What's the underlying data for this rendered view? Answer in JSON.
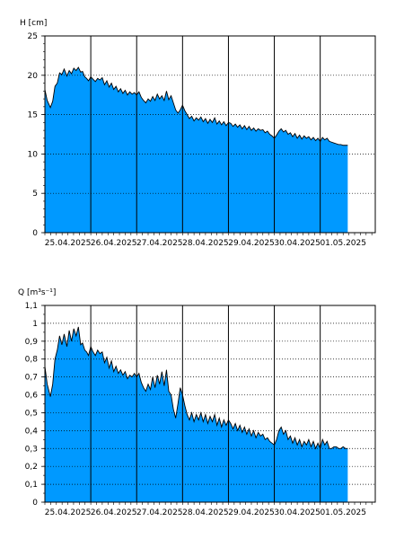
{
  "chart_data": [
    {
      "type": "area",
      "ylabel": "H [cm]",
      "ylim": [
        0,
        25
      ],
      "yticks": [
        0,
        5,
        10,
        15,
        20,
        25
      ],
      "ytick_labels": [
        "0",
        "5",
        "10",
        "15",
        "20",
        "25"
      ],
      "xlim": [
        0,
        7.2
      ],
      "x_day_lines": [
        1,
        2,
        3,
        4,
        5,
        6
      ],
      "x_tick_labels": [
        "25.04.2025",
        "26.04.2025",
        "27.04.2025",
        "28.04.2025",
        "29.04.2025",
        "30.04.2025",
        "01.05.2025"
      ],
      "grid": true,
      "fill_color": "#0099ff",
      "series": [
        {
          "x": [
            0,
            0.05,
            0.12,
            0.17,
            0.22,
            0.27,
            0.32,
            0.37,
            0.42,
            0.48,
            0.53,
            0.58,
            0.63,
            0.68,
            0.73,
            0.78,
            0.82,
            0.87,
            0.91,
            0.95,
            1.0,
            1.05,
            1.1,
            1.15,
            1.2,
            1.25,
            1.3,
            1.35,
            1.4,
            1.45,
            1.5,
            1.55,
            1.6,
            1.65,
            1.7,
            1.75,
            1.8,
            1.85,
            1.9,
            1.95,
            2.0,
            2.05,
            2.1,
            2.15,
            2.2,
            2.25,
            2.3,
            2.35,
            2.4,
            2.45,
            2.5,
            2.55,
            2.6,
            2.65,
            2.7,
            2.75,
            2.8,
            2.85,
            2.9,
            2.95,
            3.0,
            3.05,
            3.1,
            3.15,
            3.2,
            3.25,
            3.3,
            3.35,
            3.4,
            3.45,
            3.5,
            3.55,
            3.6,
            3.65,
            3.7,
            3.75,
            3.8,
            3.85,
            3.9,
            3.95,
            4.0,
            4.05,
            4.1,
            4.15,
            4.2,
            4.25,
            4.3,
            4.35,
            4.4,
            4.45,
            4.5,
            4.55,
            4.6,
            4.65,
            4.7,
            4.75,
            4.8,
            4.85,
            4.9,
            4.95,
            5.0,
            5.05,
            5.1,
            5.15,
            5.2,
            5.25,
            5.3,
            5.35,
            5.4,
            5.45,
            5.5,
            5.55,
            5.6,
            5.65,
            5.7,
            5.75,
            5.8,
            5.85,
            5.9,
            5.95,
            6.0,
            6.05,
            6.1,
            6.15,
            6.2,
            6.25,
            6.3,
            6.35,
            6.4,
            6.45,
            6.5,
            6.55,
            6.6
          ],
          "values": [
            18.2,
            16.8,
            15.9,
            16.7,
            18.6,
            19.0,
            20.3,
            20.1,
            20.8,
            19.9,
            20.6,
            20.2,
            20.9,
            20.6,
            21.0,
            20.4,
            20.5,
            19.8,
            19.6,
            19.3,
            19.8,
            19.5,
            19.2,
            19.6,
            19.4,
            19.7,
            18.8,
            19.3,
            18.5,
            19.0,
            18.2,
            18.6,
            17.9,
            18.3,
            17.7,
            18.1,
            17.5,
            17.9,
            17.6,
            17.8,
            17.5,
            17.9,
            17.2,
            16.8,
            16.5,
            17.0,
            16.7,
            17.3,
            16.8,
            17.6,
            17.0,
            17.4,
            16.8,
            18.0,
            16.9,
            17.4,
            16.5,
            15.6,
            15.2,
            15.6,
            16.2,
            15.5,
            15.0,
            14.5,
            14.8,
            14.2,
            14.6,
            14.3,
            14.7,
            14.1,
            14.5,
            13.9,
            14.4,
            14.0,
            14.6,
            13.8,
            14.2,
            13.7,
            14.1,
            13.6,
            14.0,
            13.9,
            13.5,
            13.8,
            13.4,
            13.7,
            13.2,
            13.6,
            13.1,
            13.5,
            13.0,
            13.3,
            12.9,
            13.2,
            13.0,
            13.1,
            12.7,
            12.9,
            12.5,
            12.3,
            12.0,
            12.4,
            12.9,
            13.2,
            12.8,
            13.0,
            12.5,
            12.7,
            12.2,
            12.6,
            12.0,
            12.4,
            11.9,
            12.3,
            12.0,
            12.2,
            11.8,
            12.1,
            11.7,
            12.0,
            11.6,
            12.1,
            11.8,
            12.0,
            11.6,
            11.5,
            11.4,
            11.3,
            11.2,
            11.2,
            11.1,
            11.1,
            11.1
          ]
        }
      ]
    },
    {
      "type": "area",
      "ylabel": "Q [m³s⁻¹]",
      "ylim": [
        0,
        1.1
      ],
      "yticks": [
        0,
        0.1,
        0.2,
        0.3,
        0.4,
        0.5,
        0.6,
        0.7,
        0.8,
        0.9,
        1,
        1.1
      ],
      "ytick_labels": [
        "0",
        "0,1",
        "0,2",
        "0,3",
        "0,4",
        "0,5",
        "0,6",
        "0,7",
        "0,8",
        "0,9",
        "1",
        "1,1"
      ],
      "xlim": [
        0,
        7.2
      ],
      "x_day_lines": [
        1,
        2,
        3,
        4,
        5,
        6
      ],
      "x_tick_labels": [
        "25.04.2025",
        "26.04.2025",
        "27.04.2025",
        "28.04.2025",
        "29.04.2025",
        "30.04.2025",
        "01.05.2025"
      ],
      "grid": true,
      "fill_color": "#0099ff",
      "series": [
        {
          "x": [
            0,
            0.05,
            0.12,
            0.17,
            0.22,
            0.27,
            0.32,
            0.37,
            0.42,
            0.48,
            0.53,
            0.58,
            0.63,
            0.68,
            0.73,
            0.78,
            0.82,
            0.87,
            0.91,
            0.95,
            1.0,
            1.05,
            1.1,
            1.15,
            1.2,
            1.25,
            1.3,
            1.35,
            1.4,
            1.45,
            1.5,
            1.55,
            1.6,
            1.65,
            1.7,
            1.75,
            1.8,
            1.85,
            1.9,
            1.95,
            2.0,
            2.05,
            2.1,
            2.15,
            2.2,
            2.25,
            2.3,
            2.35,
            2.4,
            2.45,
            2.5,
            2.55,
            2.6,
            2.65,
            2.7,
            2.75,
            2.8,
            2.85,
            2.9,
            2.95,
            3.0,
            3.05,
            3.1,
            3.15,
            3.2,
            3.25,
            3.3,
            3.35,
            3.4,
            3.45,
            3.5,
            3.55,
            3.6,
            3.65,
            3.7,
            3.75,
            3.8,
            3.85,
            3.9,
            3.95,
            4.0,
            4.05,
            4.1,
            4.15,
            4.2,
            4.25,
            4.3,
            4.35,
            4.4,
            4.45,
            4.5,
            4.55,
            4.6,
            4.65,
            4.7,
            4.75,
            4.8,
            4.85,
            4.9,
            4.95,
            5.0,
            5.05,
            5.1,
            5.15,
            5.2,
            5.25,
            5.3,
            5.35,
            5.4,
            5.45,
            5.5,
            5.55,
            5.6,
            5.65,
            5.7,
            5.75,
            5.8,
            5.85,
            5.9,
            5.95,
            6.0,
            6.05,
            6.1,
            6.15,
            6.2,
            6.25,
            6.3,
            6.35,
            6.4,
            6.45,
            6.5,
            6.55,
            6.6
          ],
          "values": [
            0.76,
            0.66,
            0.59,
            0.66,
            0.8,
            0.85,
            0.93,
            0.88,
            0.94,
            0.87,
            0.96,
            0.9,
            0.97,
            0.93,
            0.98,
            0.88,
            0.89,
            0.85,
            0.84,
            0.82,
            0.87,
            0.84,
            0.82,
            0.85,
            0.83,
            0.84,
            0.78,
            0.81,
            0.75,
            0.79,
            0.73,
            0.76,
            0.72,
            0.74,
            0.71,
            0.73,
            0.69,
            0.71,
            0.7,
            0.72,
            0.7,
            0.72,
            0.67,
            0.64,
            0.62,
            0.66,
            0.63,
            0.7,
            0.64,
            0.71,
            0.66,
            0.73,
            0.65,
            0.74,
            0.62,
            0.6,
            0.52,
            0.47,
            0.55,
            0.64,
            0.6,
            0.54,
            0.49,
            0.46,
            0.5,
            0.45,
            0.49,
            0.46,
            0.5,
            0.45,
            0.49,
            0.44,
            0.48,
            0.45,
            0.49,
            0.43,
            0.47,
            0.42,
            0.46,
            0.43,
            0.46,
            0.44,
            0.41,
            0.44,
            0.4,
            0.43,
            0.39,
            0.42,
            0.38,
            0.41,
            0.37,
            0.4,
            0.36,
            0.39,
            0.37,
            0.38,
            0.35,
            0.36,
            0.34,
            0.33,
            0.32,
            0.35,
            0.4,
            0.42,
            0.38,
            0.4,
            0.35,
            0.37,
            0.33,
            0.36,
            0.32,
            0.35,
            0.31,
            0.34,
            0.32,
            0.35,
            0.31,
            0.34,
            0.3,
            0.33,
            0.3,
            0.35,
            0.32,
            0.34,
            0.3,
            0.3,
            0.31,
            0.31,
            0.3,
            0.3,
            0.31,
            0.3,
            0.3
          ]
        }
      ]
    }
  ]
}
